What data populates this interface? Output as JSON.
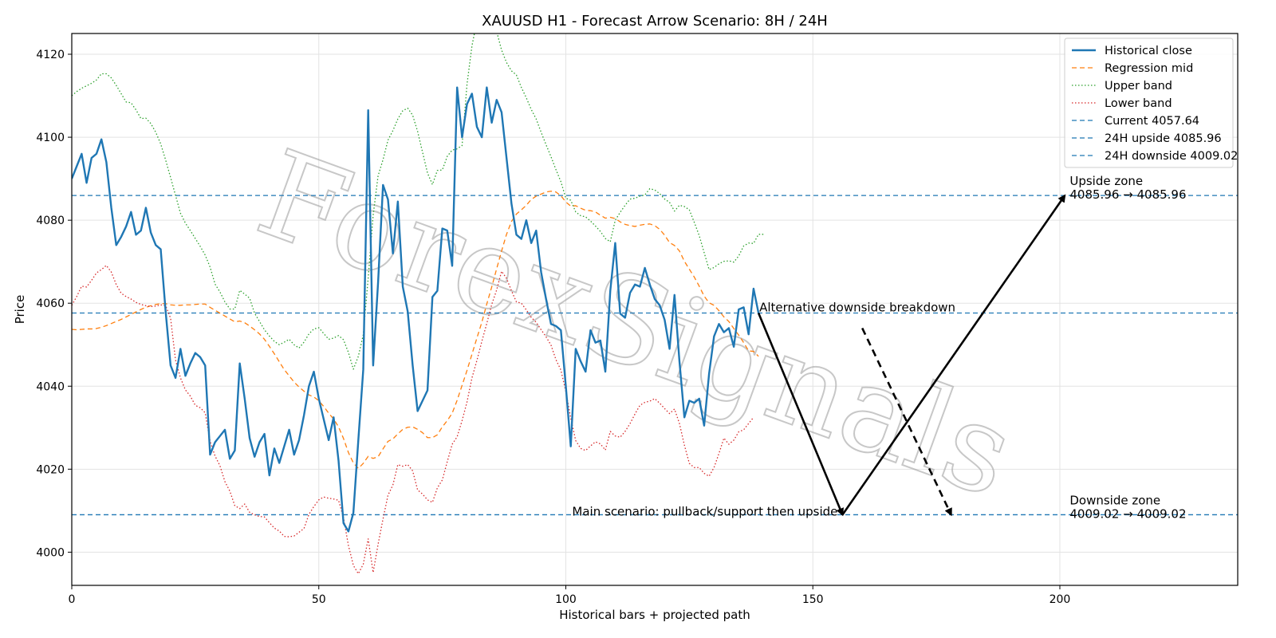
{
  "chart_data": {
    "type": "line",
    "title": "XAUUSD H1 - Forecast Arrow Scenario: 8H / 24H",
    "xlabel": "Historical bars + projected path",
    "ylabel": "Price",
    "xlim": [
      0,
      236
    ],
    "ylim": [
      3992,
      4125
    ],
    "xticks": [
      0,
      50,
      100,
      150,
      200
    ],
    "yticks": [
      4000,
      4020,
      4040,
      4060,
      4080,
      4100,
      4120
    ],
    "grid": true,
    "legend_position": "top-right",
    "series": [
      {
        "name": "Historical close",
        "style": "solid",
        "color": "#1f77b4",
        "x_start": 0,
        "values": [
          4090,
          4093,
          4096,
          4089,
          4095,
          4096,
          4099.5,
          4094,
          4083,
          4074,
          4076,
          4078.5,
          4082,
          4076.5,
          4077.5,
          4083,
          4077,
          4074,
          4073,
          4058,
          4045,
          4042,
          4049,
          4042.5,
          4045.5,
          4048,
          4047,
          4045,
          4023.5,
          4026.5,
          4028,
          4029.5,
          4022.5,
          4024.5,
          4045.5,
          4037,
          4027.5,
          4023,
          4026.5,
          4028.5,
          4018.5,
          4025,
          4021.5,
          4025.5,
          4029.5,
          4023.5,
          4027,
          4033,
          4040,
          4043.5,
          4037,
          4032,
          4027,
          4032.5,
          4022,
          4007,
          4005,
          4009.5,
          4027,
          4044,
          4106.5,
          4045,
          4065,
          4088.5,
          4085,
          4072,
          4084.5,
          4064,
          4058,
          4045,
          4034,
          4036.5,
          4039,
          4061.5,
          4063,
          4078,
          4077.5,
          4069,
          4112,
          4100,
          4108,
          4110.5,
          4102.5,
          4100,
          4112,
          4103.5,
          4109,
          4106,
          4095,
          4084,
          4076.5,
          4075.5,
          4080,
          4074.5,
          4077.5,
          4067.5,
          4061,
          4055,
          4054.5,
          4053.5,
          4040,
          4025.5,
          4049,
          4046,
          4043.5,
          4053.5,
          4050.5,
          4051,
          4043.5,
          4063,
          4074.5,
          4057.5,
          4056.5,
          4062.5,
          4064.5,
          4064,
          4068.5,
          4064.5,
          4061,
          4059.5,
          4056,
          4049,
          4062,
          4046,
          4032.5,
          4036.5,
          4036,
          4037,
          4030.5,
          4043,
          4052,
          4055,
          4053,
          4054,
          4049.5,
          4058.5,
          4059,
          4052.5,
          4063.5,
          4057.64
        ]
      },
      {
        "name": "Regression mid",
        "style": "dashed",
        "color": "#ff7f0e",
        "x_start": 0,
        "values": [
          4053.7,
          4053.6,
          4053.7,
          4053.8,
          4053.8,
          4053.9,
          4054.2,
          4054.6,
          4055.1,
          4055.6,
          4056.1,
          4056.7,
          4057.3,
          4057.9,
          4058.5,
          4059.0,
          4059.4,
          4059.7,
          4059.9,
          4059.9,
          4059.6,
          4059.5,
          4059.5,
          4059.6,
          4059.6,
          4059.7,
          4059.8,
          4059.8,
          4059.0,
          4058.3,
          4057.6,
          4056.9,
          4056.2,
          4055.5,
          4055.7,
          4055.3,
          4054.5,
          4053.6,
          4052.6,
          4051.3,
          4049.6,
          4047.8,
          4045.9,
          4044.0,
          4042.5,
          4041.0,
          4039.8,
          4038.8,
          4037.9,
          4037.4,
          4036.5,
          4035.1,
          4033.5,
          4032.1,
          4030.2,
          4027.4,
          4024.0,
          4021.5,
          4020.2,
          4021.4,
          4023.1,
          4022.6,
          4023.0,
          4024.9,
          4026.7,
          4027.3,
          4028.5,
          4029.6,
          4030.1,
          4030.2,
          4029.6,
          4028.8,
          4027.6,
          4027.6,
          4028.3,
          4030.2,
          4031.7,
          4033.5,
          4036.6,
          4040.2,
          4043.8,
          4047.7,
          4051.6,
          4055.4,
          4059.8,
          4063.9,
          4068.3,
          4072.6,
          4076.6,
          4079.7,
          4081.5,
          4082.5,
          4083.6,
          4085.0,
          4085.8,
          4086.3,
          4086.8,
          4087.0,
          4086.8,
          4085.9,
          4084.4,
          4083.4,
          4083.5,
          4082.9,
          4082.4,
          4082.3,
          4082.0,
          4081.2,
          4080.5,
          4080.7,
          4080.4,
          4079.6,
          4079.0,
          4078.7,
          4078.5,
          4078.8,
          4079.0,
          4079.1,
          4078.7,
          4077.8,
          4076.4,
          4074.6,
          4073.9,
          4072.6,
          4070.1,
          4068.2,
          4066.3,
          4064.1,
          4061.7,
          4060.1,
          4059.5,
          4058.2,
          4056.7,
          4055.6,
          4053.9,
          4052.3,
          4050.5,
          4048.5,
          4048.4,
          4047.2
        ]
      },
      {
        "name": "Upper band",
        "style": "dotted",
        "color": "#2ca02c",
        "x_start": 0,
        "values": [
          4110,
          4111,
          4111.8,
          4112.4,
          4113,
          4113.8,
          4115.3,
          4115.3,
          4114.3,
          4112.5,
          4110.5,
          4108.5,
          4108.3,
          4106.6,
          4104.5,
          4104.6,
          4103.3,
          4101.2,
          4098.4,
          4094.5,
          4090.3,
          4086.0,
          4081.7,
          4079.3,
          4077.5,
          4075.6,
          4073.7,
          4071.6,
          4068.7,
          4064.6,
          4062.7,
          4060.3,
          4058.6,
          4058.6,
          4063.1,
          4062.2,
          4061.2,
          4057.6,
          4055.6,
          4053.6,
          4052.1,
          4050.8,
          4050.0,
          4050.6,
          4051.3,
          4050.0,
          4049.2,
          4050.6,
          4052.6,
          4053.8,
          4054.1,
          4052.7,
          4051.3,
          4051.6,
          4052.2,
          4051.2,
          4048.1,
          4044.1,
          4047.2,
          4052.4,
          4066.1,
          4081.2,
          4090.7,
          4094.6,
          4099.3,
          4101.6,
          4104.4,
          4106.4,
          4107.0,
          4105.3,
          4101.4,
          4096.4,
          4091.4,
          4088.6,
          4092.0,
          4092.1,
          4095.4,
          4096.9,
          4097.2,
          4098.0,
          4112.8,
          4122.0,
          4128.0,
          4130.0,
          4130.0,
          4128.0,
          4125.5,
          4121.0,
          4118.0,
          4116.0,
          4115.0,
          4112.0,
          4109.5,
          4106.7,
          4104.4,
          4101.2,
          4098.2,
          4095.3,
          4092.2,
          4089.3,
          4085.3,
          4084.8,
          4082.0,
          4081.1,
          4080.8,
          4079.8,
          4078.6,
          4077.3,
          4075.6,
          4074.8,
          4080.0,
          4081.9,
          4083.6,
          4085.1,
          4085.3,
          4085.8,
          4086.1,
          4087.6,
          4087.3,
          4086.4,
          4085.1,
          4084.3,
          4082.2,
          4083.6,
          4083.3,
          4082.5,
          4079.5,
          4076.3,
          4072.2,
          4068.1,
          4068.6,
          4069.5,
          4070.1,
          4070.2,
          4069.9,
          4071.4,
          4073.8,
          4074.5,
          4074.4,
          4076.6,
          4076.6
        ]
      },
      {
        "name": "Lower band",
        "style": "dotted",
        "color": "#d62728",
        "x_start": 0,
        "values": [
          4059.5,
          4061.6,
          4064.1,
          4063.9,
          4065.5,
          4067.3,
          4068.1,
          4069.1,
          4067.5,
          4064.5,
          4062.4,
          4061.6,
          4061.0,
          4060.2,
          4059.7,
          4059.4,
          4059.2,
          4059.3,
          4059.6,
          4059.4,
          4056.4,
          4046.3,
          4042.0,
          4039.1,
          4037.6,
          4035.4,
          4034.8,
          4033.6,
          4026.7,
          4023.2,
          4020.8,
          4017.0,
          4014.7,
          4011.2,
          4010.5,
          4011.6,
          4009.6,
          4009.0,
          4008.6,
          4008.5,
          4007.1,
          4005.8,
          4005.1,
          4003.8,
          4003.7,
          4003.9,
          4004.8,
          4005.7,
          4009.1,
          4011.0,
          4012.6,
          4013.3,
          4013.0,
          4012.8,
          4012.5,
          4008.3,
          4001.6,
          3996.8,
          3994.8,
          3997.1,
          4003.2,
          3995.1,
          4001.9,
          4008.0,
          4013.7,
          4016.2,
          4021.1,
          4020.7,
          4021.1,
          4019.6,
          4015.0,
          4014.0,
          4012.6,
          4012.0,
          4015.5,
          4017.4,
          4021.8,
          4026.0,
          4027.8,
          4031.7,
          4036.2,
          4042.0,
          4046.2,
          4050.8,
          4055.1,
          4059.7,
          4063.2,
          4067.7,
          4066.0,
          4063.0,
          4060.3,
          4060.0,
          4058.4,
          4056.6,
          4055.4,
          4053.6,
          4051.9,
          4049.9,
          4046.4,
          4043.9,
          4038.7,
          4032.3,
          4026.9,
          4025.0,
          4024.5,
          4025.6,
          4026.6,
          4026.1,
          4024.6,
          4029.1,
          4028.0,
          4027.7,
          4029.1,
          4031.0,
          4033.3,
          4035.4,
          4036.1,
          4036.4,
          4037.0,
          4035.9,
          4034.6,
          4033.4,
          4034.5,
          4031.0,
          4025.8,
          4021.4,
          4020.4,
          4020.4,
          4019.0,
          4018.3,
          4020.4,
          4023.8,
          4027.5,
          4026.0,
          4027.0,
          4029.0,
          4029.5,
          4031.0,
          4032.5
        ]
      }
    ],
    "hlines": [
      {
        "name": "Current 4057.64",
        "y": 4057.64,
        "color": "#1f77b4",
        "style": "dashed"
      },
      {
        "name": "24H upside 4085.96",
        "y": 4085.96,
        "color": "#1f77b4",
        "style": "dashed"
      },
      {
        "name": "24H downside 4009.02",
        "y": 4009.02,
        "color": "#1f77b4",
        "style": "dashed"
      }
    ],
    "arrows": [
      {
        "from": [
          139,
          4057.64
        ],
        "to": [
          156,
          4009.02
        ],
        "style": "solid",
        "label": "Main scenario: pullback/support then upside"
      },
      {
        "from": [
          156,
          4009.02
        ],
        "to": [
          201,
          4085.96
        ],
        "style": "solid"
      },
      {
        "from": [
          160,
          4054
        ],
        "to": [
          178,
          4009.02
        ],
        "style": "dashed",
        "label": "Alternative downside breakdown"
      }
    ],
    "annotations": [
      {
        "x": 202,
        "y": 4088.5,
        "line1": "Upside zone",
        "line2": "4085.96 → 4085.96"
      },
      {
        "x": 202,
        "y": 4011.5,
        "line1": "Downside zone",
        "line2": "4009.02 → 4009.02"
      }
    ],
    "watermark": "ForexSignals"
  }
}
